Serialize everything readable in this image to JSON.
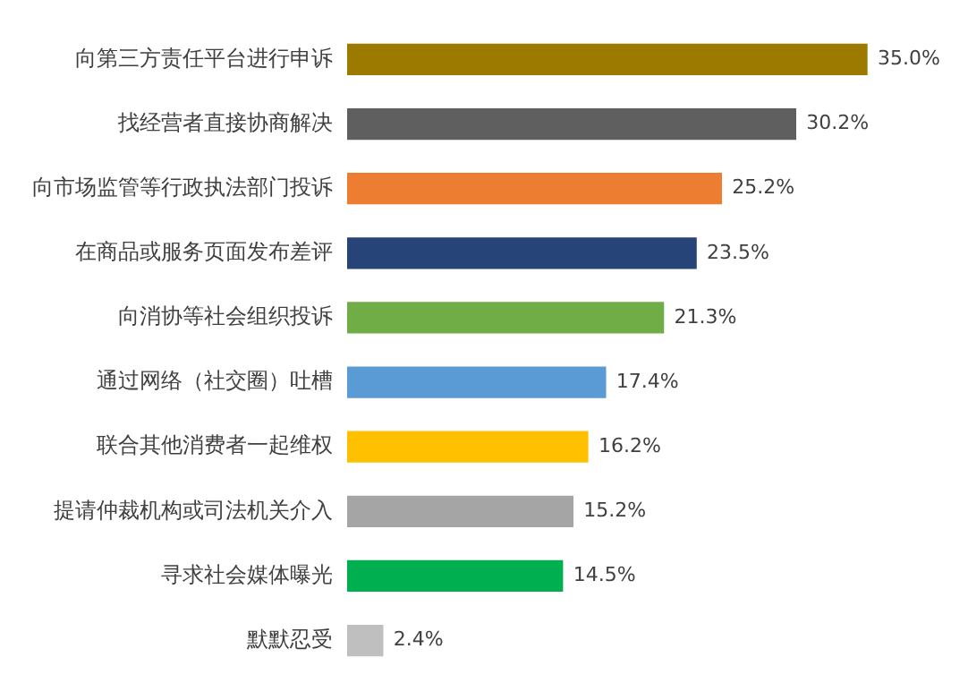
{
  "chart_data": {
    "type": "bar",
    "orientation": "horizontal",
    "categories": [
      "向第三方责任平台进行申诉",
      "找经营者直接协商解决",
      "向市场监管等行政执法部门投诉",
      "在商品或服务页面发布差评",
      "向消协等社会组织投诉",
      "通过网络（社交圈）吐槽",
      "联合其他消费者一起维权",
      "提请仲裁机构或司法机关介入",
      "寻求社会媒体曝光",
      "默默忍受"
    ],
    "values": [
      35.0,
      30.2,
      25.2,
      23.5,
      21.3,
      17.4,
      16.2,
      15.2,
      14.5,
      2.4
    ],
    "colors": [
      "#9c7a00",
      "#5f5f5f",
      "#ed7d31",
      "#264478",
      "#70ad47",
      "#5b9bd5",
      "#ffc000",
      "#a5a5a5",
      "#00b050",
      "#bfbfbf"
    ],
    "value_labels": [
      "35.0%",
      "30.2%",
      "25.2%",
      "23.5%",
      "21.3%",
      "17.4%",
      "16.2%",
      "15.2%",
      "14.5%",
      "2.4%"
    ],
    "grid": false,
    "legend": false
  }
}
